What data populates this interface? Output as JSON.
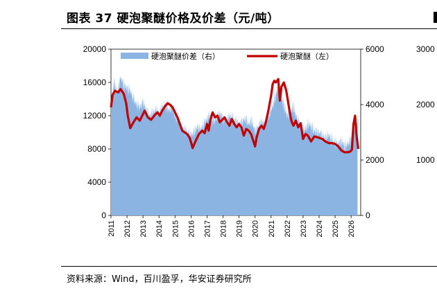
{
  "header": {
    "title": "图表 37 硬泡聚醚价格及价差（元/吨）"
  },
  "footer": {
    "source": "资料来源：Wind，百川盈孚，华安证券研究所"
  },
  "colors": {
    "area": "#8CB4E2",
    "line": "#C00000"
  },
  "chart_data": {
    "type": "area",
    "title": "图表 37 硬泡聚醚价格及价差（元/吨）",
    "legend": [
      "硬泡聚醚价差（右）",
      "硬泡聚醚（左）"
    ],
    "legend_position": "top",
    "x_ticks": [
      "2011",
      "2012",
      "2013",
      "2014",
      "2015",
      "2016",
      "2017",
      "2018",
      "2019",
      "2020",
      "2021",
      "2022",
      "2023",
      "2024",
      "2025",
      "2026"
    ],
    "y_left": {
      "range": [
        0,
        20000
      ],
      "ticks": [
        "0",
        "4000",
        "8000",
        "12000",
        "16000",
        "20000"
      ]
    },
    "y_right": {
      "range": [
        0,
        6000
      ],
      "ticks": [
        "0",
        "2000",
        "4000",
        "6000"
      ]
    },
    "partial_right_axis_ticks": [
      "3000",
      "2000",
      "1000"
    ],
    "series": [
      {
        "name": "硬泡聚醚价差（右）",
        "type": "area",
        "axis": "right",
        "x": [
          2011.0,
          2011.2,
          2011.4,
          2011.6,
          2011.8,
          2012.0,
          2012.2,
          2012.4,
          2012.6,
          2012.8,
          2013.0,
          2013.2,
          2013.4,
          2013.6,
          2013.8,
          2014.0,
          2014.2,
          2014.4,
          2014.6,
          2014.8,
          2015.0,
          2015.2,
          2015.4,
          2015.6,
          2015.8,
          2016.0,
          2016.2,
          2016.4,
          2016.6,
          2016.8,
          2017.0,
          2017.2,
          2017.4,
          2017.6,
          2017.8,
          2018.0,
          2018.2,
          2018.4,
          2018.6,
          2018.8,
          2019.0,
          2019.2,
          2019.4,
          2019.6,
          2019.8,
          2020.0,
          2020.2,
          2020.4,
          2020.6,
          2020.8,
          2021.0,
          2021.2,
          2021.4,
          2021.6,
          2021.8,
          2022.0,
          2022.2,
          2022.4,
          2022.6,
          2022.8,
          2023.0,
          2023.2,
          2023.4,
          2023.6,
          2023.8,
          2024.0,
          2024.2,
          2024.4,
          2024.6,
          2024.8,
          2025.0,
          2025.2,
          2025.4,
          2025.6,
          2025.8,
          2026.0,
          2026.2,
          2026.4
        ],
        "values": [
          4100,
          4800,
          4400,
          5000,
          4700,
          4600,
          4500,
          4200,
          4000,
          3900,
          4100,
          3800,
          3600,
          3700,
          3800,
          3700,
          3900,
          4000,
          3800,
          3900,
          3600,
          3400,
          3200,
          3100,
          3000,
          2900,
          3000,
          3200,
          3100,
          3300,
          3500,
          3600,
          3400,
          3500,
          3700,
          3500,
          3400,
          3600,
          3500,
          3400,
          3300,
          3400,
          3500,
          3300,
          3400,
          3000,
          3200,
          3400,
          3300,
          3500,
          3800,
          4100,
          4600,
          4300,
          4000,
          3600,
          3700,
          3900,
          3500,
          3300,
          3000,
          3200,
          3300,
          3100,
          3000,
          3000,
          2900,
          2800,
          2900,
          2700,
          2600,
          2600,
          2700,
          2500,
          2600,
          2700,
          3200,
          3300
        ]
      },
      {
        "name": "硬泡聚醚（左）",
        "type": "line",
        "axis": "left",
        "x": [
          2011.0,
          2011.1,
          2011.25,
          2011.45,
          2011.6,
          2011.8,
          2011.95,
          2012.05,
          2012.2,
          2012.4,
          2012.6,
          2012.8,
          2012.95,
          2013.1,
          2013.3,
          2013.5,
          2013.7,
          2013.9,
          2014.05,
          2014.2,
          2014.4,
          2014.55,
          2014.7,
          2014.85,
          2015.0,
          2015.15,
          2015.3,
          2015.45,
          2015.6,
          2015.75,
          2015.9,
          2016.0,
          2016.1,
          2016.3,
          2016.5,
          2016.7,
          2016.85,
          2017.0,
          2017.1,
          2017.2,
          2017.35,
          2017.5,
          2017.65,
          2017.8,
          2017.95,
          2018.1,
          2018.25,
          2018.4,
          2018.55,
          2018.7,
          2018.85,
          2019.0,
          2019.15,
          2019.3,
          2019.45,
          2019.6,
          2019.75,
          2019.9,
          2020.0,
          2020.1,
          2020.25,
          2020.4,
          2020.55,
          2020.7,
          2020.85,
          2021.0,
          2021.1,
          2021.2,
          2021.3,
          2021.45,
          2021.55,
          2021.65,
          2021.8,
          2021.95,
          2022.1,
          2022.2,
          2022.3,
          2022.4,
          2022.55,
          2022.7,
          2022.85,
          2023.0,
          2023.15,
          2023.3,
          2023.5,
          2023.7,
          2023.9,
          2024.05,
          2024.2,
          2024.4,
          2024.6,
          2024.8,
          2025.0,
          2025.2,
          2025.4,
          2025.6,
          2025.8,
          2025.95,
          2026.05,
          2026.15,
          2026.25,
          2026.35,
          2026.45
        ],
        "values": [
          13000,
          14500,
          15000,
          14800,
          15200,
          14600,
          13500,
          12000,
          10500,
          11200,
          11800,
          11400,
          12000,
          12600,
          11800,
          11500,
          12000,
          12400,
          12000,
          12600,
          13200,
          13500,
          13300,
          13000,
          12400,
          11800,
          11000,
          10200,
          10000,
          9800,
          9400,
          8800,
          8100,
          9000,
          9800,
          10200,
          9900,
          11000,
          10200,
          11400,
          12400,
          11800,
          12000,
          11200,
          11500,
          11800,
          11200,
          10800,
          11600,
          11000,
          10600,
          11000,
          10600,
          9600,
          10400,
          10200,
          9800,
          8900,
          8300,
          9400,
          10400,
          10800,
          10400,
          11400,
          12800,
          14400,
          15800,
          16200,
          16000,
          16400,
          13800,
          15500,
          16000,
          15000,
          13200,
          12000,
          11200,
          10800,
          11400,
          10600,
          11100,
          9200,
          9800,
          9600,
          8900,
          9500,
          9400,
          9300,
          9200,
          8900,
          8700,
          8700,
          8600,
          8300,
          7800,
          7600,
          7600,
          7700,
          7900,
          11000,
          12000,
          9500,
          8000
        ]
      }
    ]
  }
}
